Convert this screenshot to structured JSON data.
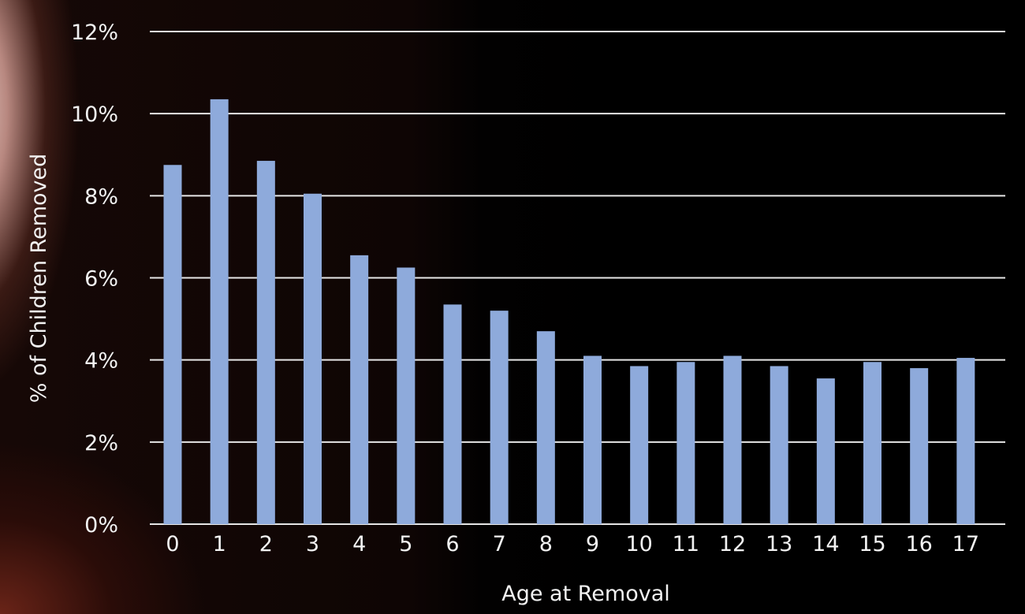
{
  "chart_data": {
    "type": "bar",
    "title": "",
    "xlabel": "Age at Removal",
    "ylabel": "% of Children Removed",
    "categories": [
      "0",
      "1",
      "2",
      "3",
      "4",
      "5",
      "6",
      "7",
      "8",
      "9",
      "10",
      "11",
      "12",
      "13",
      "14",
      "15",
      "16",
      "17"
    ],
    "values": [
      8.75,
      10.35,
      8.85,
      8.05,
      6.55,
      6.25,
      5.35,
      5.2,
      4.7,
      4.1,
      3.85,
      3.95,
      4.1,
      3.85,
      3.55,
      3.95,
      3.8,
      4.05
    ],
    "ylim": [
      0,
      12
    ],
    "yticks": [
      0,
      2,
      4,
      6,
      8,
      10,
      12
    ],
    "ytick_labels": [
      "0%",
      "2%",
      "4%",
      "6%",
      "8%",
      "10%",
      "12%"
    ],
    "grid": true,
    "legend": "none",
    "bar_color": "#8eaadb",
    "gridline_color": "#e6e6e6",
    "text_color": "#f2f2f2"
  }
}
